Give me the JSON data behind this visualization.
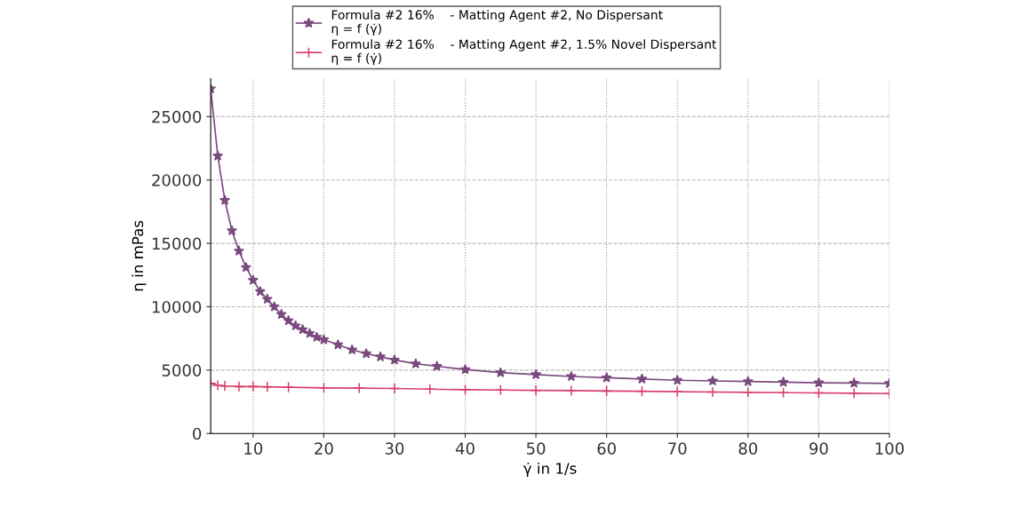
{
  "chart_data": {
    "type": "line",
    "xlabel": "γ̇ in 1/s",
    "ylabel": "η in mPas",
    "xlim": [
      4,
      100
    ],
    "ylim": [
      0,
      28000
    ],
    "xticks": [
      10,
      20,
      30,
      40,
      50,
      60,
      70,
      80,
      90,
      100
    ],
    "yticks": [
      0,
      5000,
      10000,
      15000,
      20000,
      25000
    ],
    "grid": true,
    "legend": "top",
    "line_style": "solid",
    "series": [
      {
        "name": "Formula #2 16%    - Matting Agent #2, No Dispersant\nη = f (γ̇)",
        "color": "#7a4a7e",
        "marker": "star",
        "x": [
          4,
          5,
          6,
          7,
          8,
          9,
          10,
          11,
          12,
          13,
          14,
          15,
          16,
          17,
          18,
          19,
          20,
          22,
          24,
          26,
          28,
          30,
          33,
          36,
          40,
          45,
          50,
          55,
          60,
          65,
          70,
          75,
          80,
          85,
          90,
          95,
          100
        ],
        "values": [
          27200,
          21900,
          18400,
          16000,
          14400,
          13100,
          12100,
          11200,
          10600,
          10000,
          9400,
          8900,
          8500,
          8200,
          7900,
          7600,
          7400,
          7000,
          6600,
          6300,
          6050,
          5800,
          5500,
          5300,
          5050,
          4800,
          4650,
          4500,
          4400,
          4300,
          4200,
          4150,
          4100,
          4050,
          4000,
          3980,
          3950
        ]
      },
      {
        "name": "Formula #2 16%    - Matting Agent #2, 1.5% Novel Dispersant\nη = f (γ̇)",
        "color": "#d8406a",
        "marker": "cross",
        "x": [
          4,
          5,
          6,
          8,
          10,
          12,
          15,
          20,
          25,
          30,
          35,
          40,
          45,
          50,
          55,
          60,
          65,
          70,
          75,
          80,
          85,
          90,
          95,
          100
        ],
        "values": [
          3950,
          3800,
          3750,
          3700,
          3700,
          3680,
          3650,
          3600,
          3580,
          3550,
          3500,
          3450,
          3430,
          3400,
          3380,
          3350,
          3330,
          3300,
          3270,
          3250,
          3220,
          3200,
          3170,
          3150
        ]
      }
    ]
  }
}
